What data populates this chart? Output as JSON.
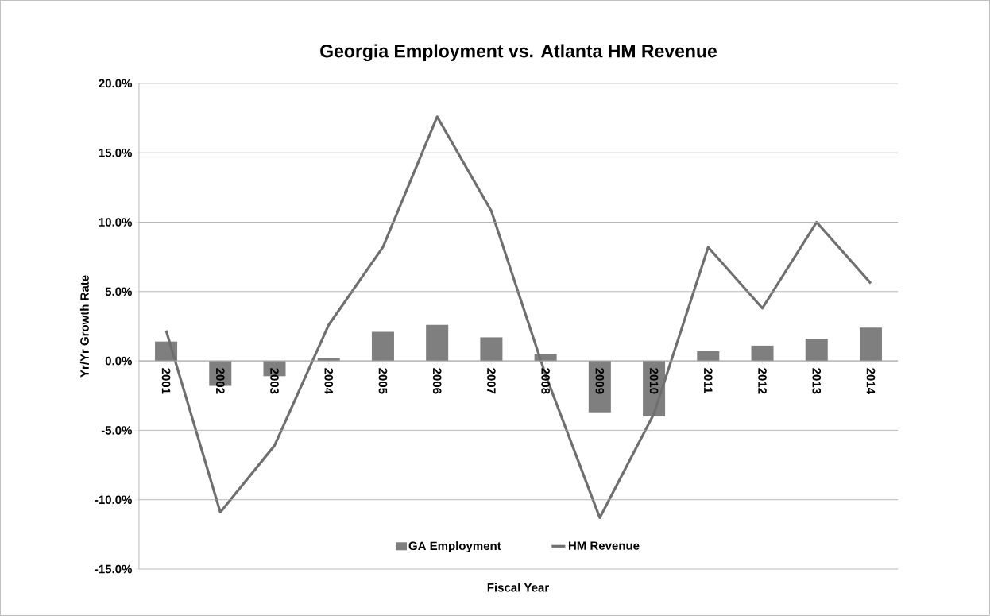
{
  "chart_data": {
    "type": "bar",
    "title": "Georgia Employment vs. Atlanta HM Revenue",
    "xlabel": "Fiscal Year",
    "ylabel": "Yr/Yr Growth Rate",
    "categories": [
      "2001",
      "2002",
      "2003",
      "2004",
      "2005",
      "2006",
      "2007",
      "2008",
      "2009",
      "2010",
      "2011",
      "2012",
      "2013",
      "2014"
    ],
    "series": [
      {
        "name": "GA Employment",
        "color": "#7f7f7f",
        "values": [
          1.4,
          -1.8,
          -1.1,
          0.2,
          2.1,
          2.6,
          1.7,
          0.5,
          -3.7,
          -4.0,
          0.7,
          1.1,
          1.6,
          2.4
        ]
      },
      {
        "name": "HM Revenue",
        "type": "line",
        "color": "#6f6f6f",
        "values": [
          2.2,
          -10.9,
          -6.1,
          2.6,
          8.2,
          17.6,
          10.8,
          -1.0,
          -11.3,
          -3.8,
          8.2,
          3.8,
          10.0,
          5.6
        ]
      }
    ],
    "ylim": [
      -15,
      20
    ],
    "yticks": [
      {
        "value": -15,
        "label": "-15.0%"
      },
      {
        "value": -10,
        "label": "-10.0%"
      },
      {
        "value": -5,
        "label": "-5.0%"
      },
      {
        "value": 0,
        "label": "0.0%"
      },
      {
        "value": 5,
        "label": "5.0%"
      },
      {
        "value": 10,
        "label": "10.0%"
      },
      {
        "value": 15,
        "label": "15.0%"
      },
      {
        "value": 20,
        "label": "20.0%"
      }
    ],
    "grid": "y",
    "legend": "bottom",
    "marker": "none",
    "line_style": "solid"
  }
}
